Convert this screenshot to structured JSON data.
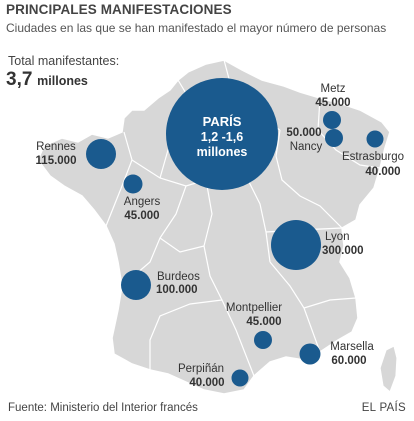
{
  "header": {
    "title": "PRINCIPALES MANIFESTACIONES",
    "subtitle": "Ciudades en las que se han manifestado el mayor número de personas"
  },
  "total": {
    "label": "Total manifestantes:",
    "value": "3,7",
    "unit": "millones"
  },
  "footer": {
    "source": "Fuente: Ministerio del Interior francés",
    "credit": "EL PAÍS"
  },
  "colors": {
    "land": "#d7d7d7",
    "borders": "#ffffff",
    "bubble": "#1a5a8e",
    "bubble_text": "#ffffff",
    "label_text": "#333333"
  },
  "cities": [
    {
      "id": "paris",
      "name": "PARÍS",
      "value_text": "1,2 -1,6",
      "unit": "millones",
      "value": 1400000
    },
    {
      "id": "rennes",
      "name": "Rennes",
      "value_text": "115.000",
      "value": 115000
    },
    {
      "id": "angers",
      "name": "Angers",
      "value_text": "45.000",
      "value": 45000
    },
    {
      "id": "metz",
      "name": "Metz",
      "value_text": "45.000",
      "value": 45000
    },
    {
      "id": "nancy",
      "name": "Nancy",
      "value_text": "50.000",
      "value": 50000
    },
    {
      "id": "estrasburgo",
      "name": "Estrasburgo",
      "value_text": "40.000",
      "value": 40000
    },
    {
      "id": "lyon",
      "name": "Lyon",
      "value_text": "300.000",
      "value": 300000
    },
    {
      "id": "burdeos",
      "name": "Burdeos",
      "value_text": "100.000",
      "value": 100000
    },
    {
      "id": "montpellier",
      "name": "Montpellier",
      "value_text": "45.000",
      "value": 45000
    },
    {
      "id": "marsella",
      "name": "Marsella",
      "value_text": "60.000",
      "value": 60000
    },
    {
      "id": "perpinan",
      "name": "Perpiñán",
      "value_text": "40.000",
      "value": 40000
    }
  ]
}
